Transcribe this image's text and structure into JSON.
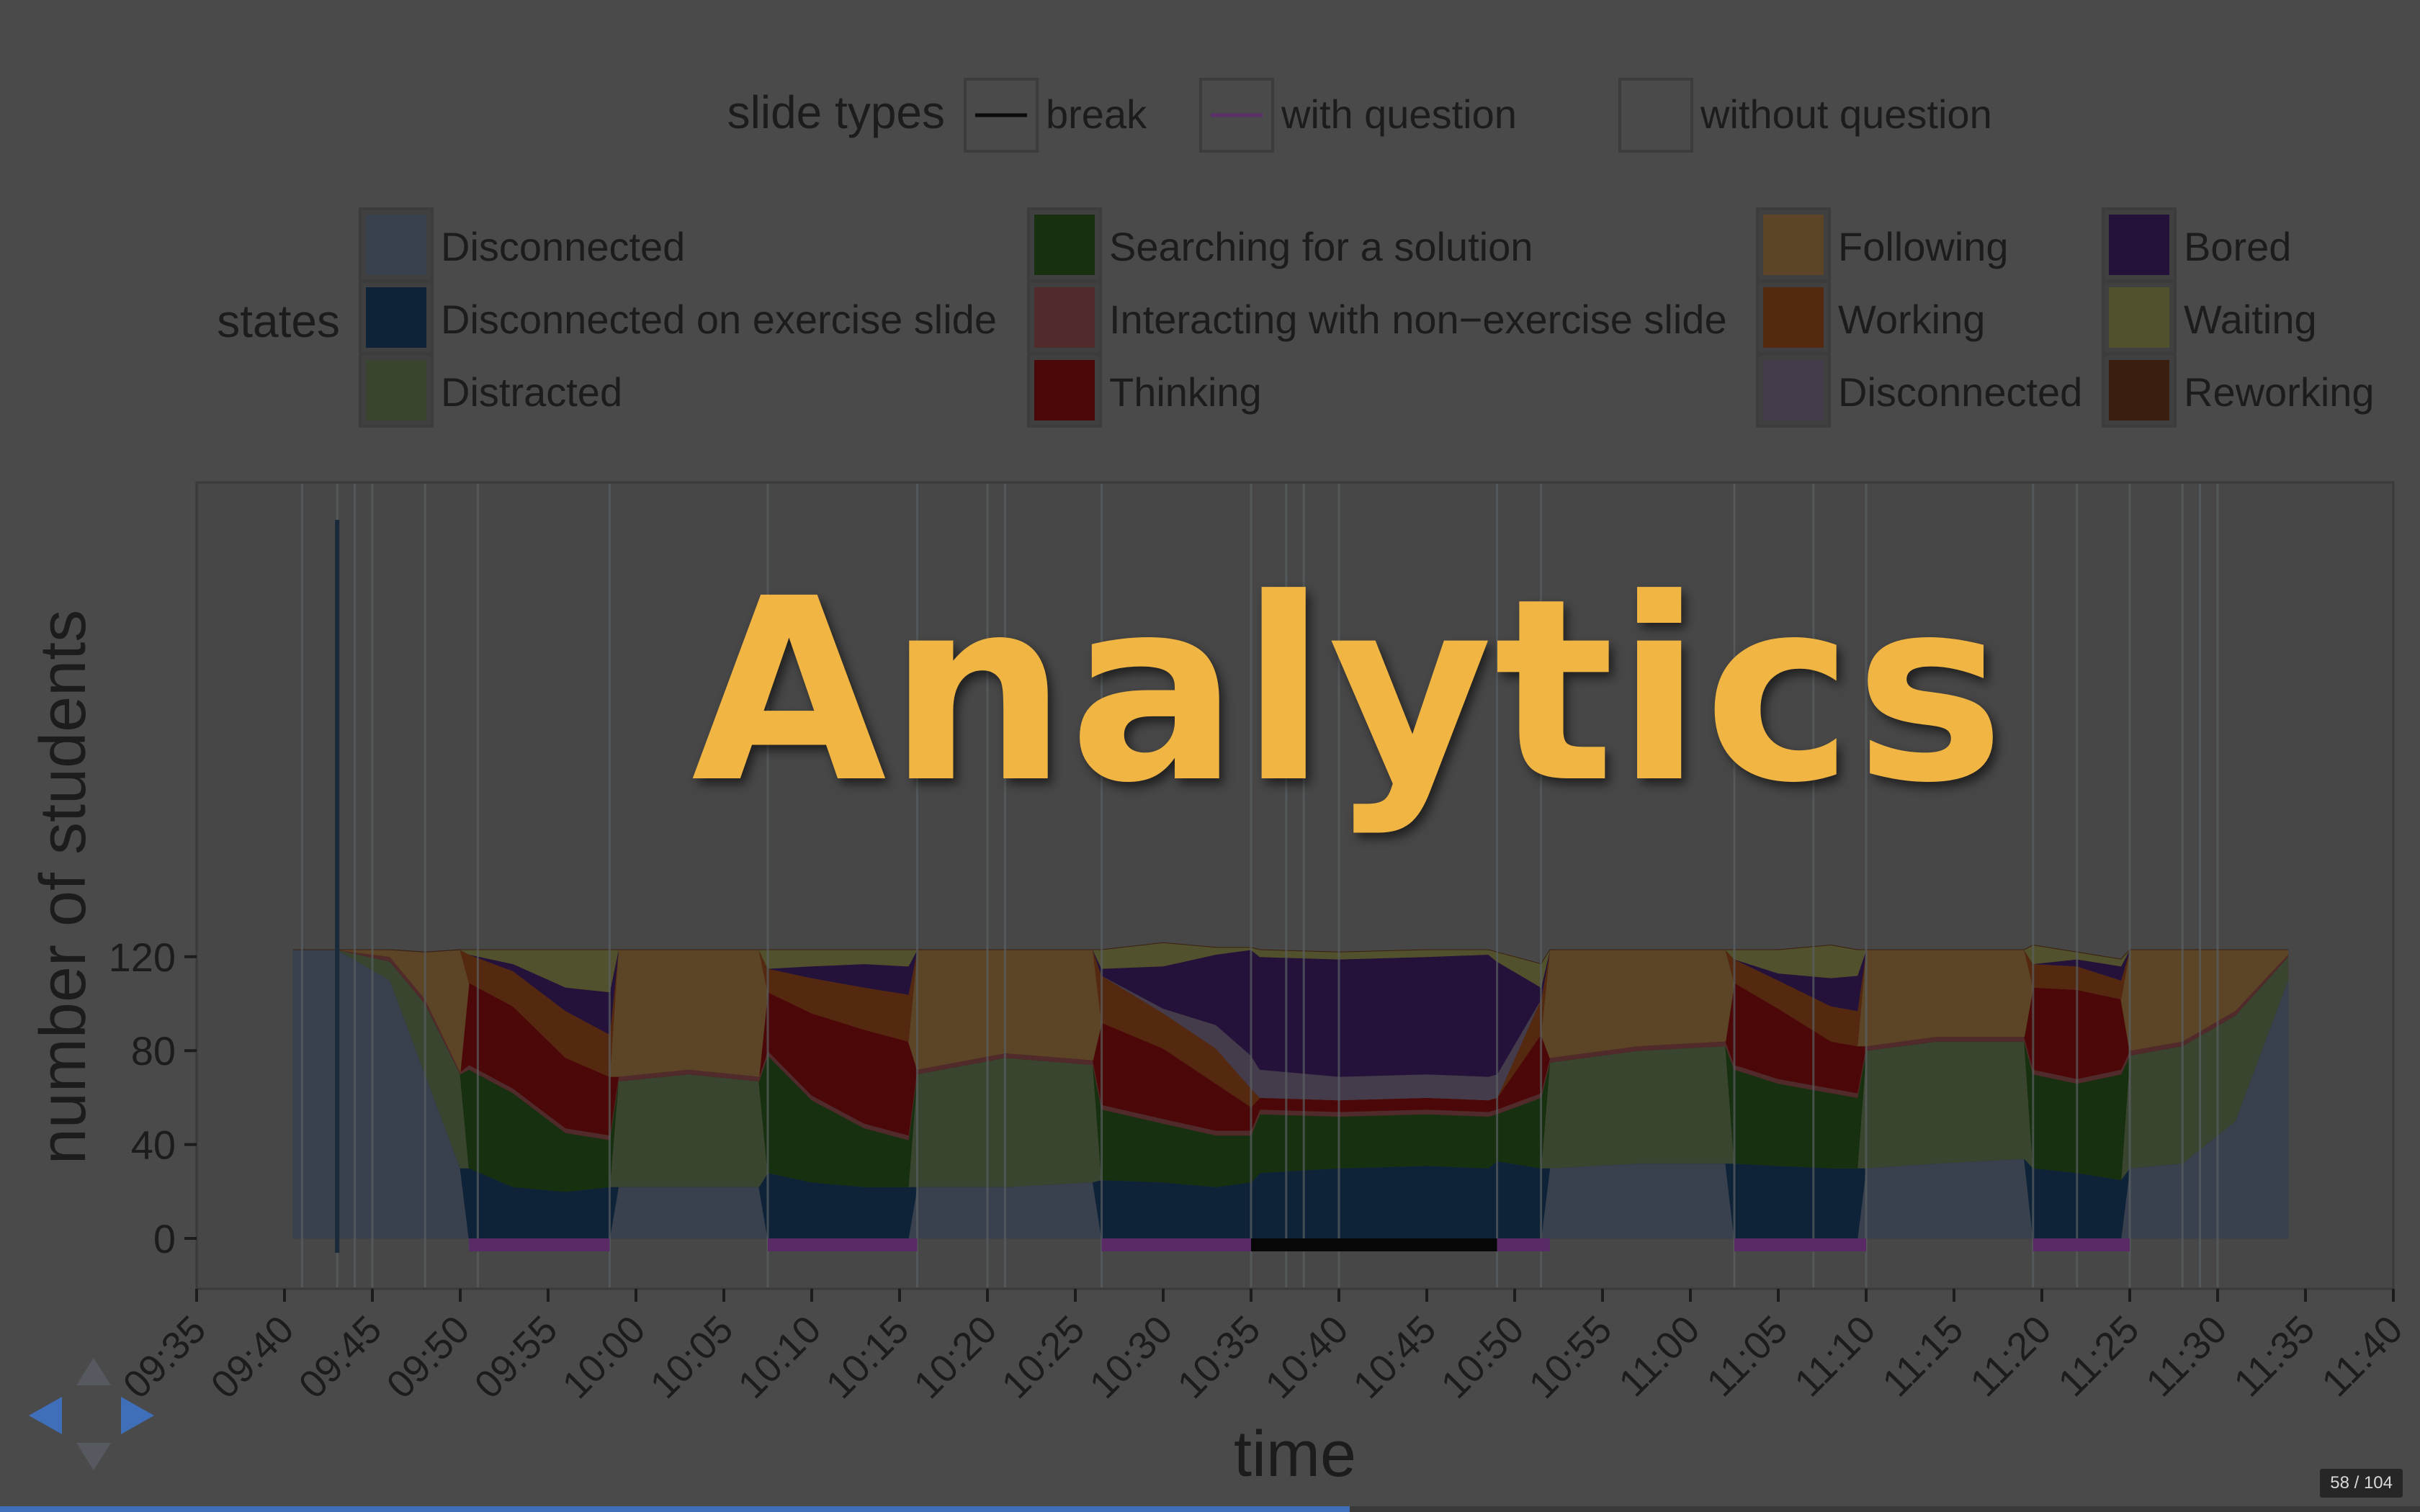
{
  "slide": {
    "title": "Analytics",
    "counter": "58 / 104",
    "progress": 0.5577
  },
  "legend_slide_types": {
    "title": "slide types",
    "entries": [
      {
        "label": "break",
        "swatch": "line",
        "color": "#0a0a0a"
      },
      {
        "label": "with question",
        "swatch": "line",
        "color": "#5a2f6a"
      },
      {
        "label": "without question",
        "swatch": "empty",
        "color": ""
      }
    ]
  },
  "legend_states": {
    "title": "states",
    "entries": [
      {
        "label": "Disconnected",
        "color": "#38414d"
      },
      {
        "label": "Disconnected on exercise slide",
        "color": "#0e2238"
      },
      {
        "label": "Distracted",
        "color": "#3a4530"
      },
      {
        "label": "Searching for a solution",
        "color": "#17300f"
      },
      {
        "label": "Interacting with non−exercise slide",
        "color": "#512b2b"
      },
      {
        "label": "Thinking",
        "color": "#4c0808"
      },
      {
        "label": "Following",
        "color": "#5c4426"
      },
      {
        "label": "Working",
        "color": "#552810"
      },
      {
        "label": "Disconnected",
        "color": "#443c4b"
      },
      {
        "label": "Bored",
        "color": "#24123a"
      },
      {
        "label": "Waiting",
        "color": "#52512d"
      },
      {
        "label": "Reworking",
        "color": "#3a1e10"
      }
    ]
  },
  "chart_data": {
    "type": "area",
    "xlabel": "time",
    "ylabel": "number of students",
    "ylim": [
      0,
      130
    ],
    "xlim": [
      "09:35",
      "11:40"
    ],
    "x_ticks": [
      "09:35",
      "09:40",
      "09:45",
      "09:50",
      "09:55",
      "10:00",
      "10:05",
      "10:10",
      "10:15",
      "10:20",
      "10:25",
      "10:30",
      "10:35",
      "10:40",
      "10:45",
      "10:50",
      "10:55",
      "11:00",
      "11:05",
      "11:10",
      "11:15",
      "11:20",
      "11:25",
      "11:30",
      "11:35",
      "11:40"
    ],
    "y_ticks": [
      0,
      40,
      80,
      120
    ],
    "x": [
      "09:40:30",
      "09:43",
      "09:46",
      "09:48",
      "09:50",
      "09:50:30",
      "09:53",
      "09:56",
      "09:58:30",
      "09:59",
      "10:03",
      "10:07",
      "10:07:30",
      "10:10",
      "10:13",
      "10:15:30",
      "10:16",
      "10:21",
      "10:26",
      "10:26:30",
      "10:30",
      "10:33",
      "10:35",
      "10:35:30",
      "10:40",
      "10:45",
      "10:48:30",
      "10:49",
      "10:51:30",
      "10:52",
      "10:57",
      "11:02",
      "11:02:30",
      "11:05",
      "11:08",
      "11:09:30",
      "11:10",
      "11:14",
      "11:19",
      "11:19:30",
      "11:22",
      "11:24:30",
      "11:25",
      "11:28",
      "11:31",
      "11:34"
    ],
    "series": [
      {
        "name": "Disconnected",
        "color": "#38414d",
        "values": [
          123,
          123,
          110,
          70,
          30,
          0,
          0,
          0,
          0,
          22,
          22,
          22,
          0,
          0,
          0,
          0,
          22,
          22,
          24,
          0,
          0,
          0,
          0,
          0,
          0,
          0,
          0,
          0,
          0,
          30,
          32,
          32,
          0,
          0,
          0,
          0,
          30,
          32,
          34,
          0,
          0,
          0,
          30,
          32,
          50,
          110
        ]
      },
      {
        "name": "Disconnected on exercise slide",
        "color": "#0e2238",
        "values": [
          0,
          0,
          0,
          0,
          0,
          30,
          22,
          20,
          22,
          0,
          0,
          0,
          28,
          24,
          22,
          22,
          0,
          0,
          0,
          25,
          24,
          22,
          24,
          28,
          30,
          31,
          30,
          33,
          30,
          0,
          0,
          0,
          32,
          31,
          30,
          30,
          0,
          0,
          0,
          30,
          28,
          25,
          0,
          0,
          0,
          0
        ]
      },
      {
        "name": "Distracted",
        "color": "#3a4530",
        "values": [
          0,
          0,
          8,
          30,
          40,
          0,
          0,
          0,
          0,
          45,
          48,
          45,
          0,
          0,
          0,
          0,
          48,
          55,
          50,
          0,
          0,
          0,
          0,
          0,
          0,
          0,
          0,
          0,
          0,
          45,
          48,
          50,
          0,
          0,
          0,
          0,
          50,
          52,
          50,
          0,
          0,
          0,
          48,
          50,
          45,
          10
        ]
      },
      {
        "name": "Searching for a solution",
        "color": "#17300f",
        "values": [
          0,
          0,
          0,
          0,
          0,
          42,
          40,
          25,
          20,
          0,
          0,
          0,
          50,
          35,
          25,
          20,
          0,
          0,
          0,
          30,
          25,
          22,
          20,
          25,
          22,
          22,
          22,
          20,
          30,
          0,
          0,
          0,
          40,
          35,
          32,
          30,
          0,
          0,
          0,
          40,
          38,
          45,
          0,
          0,
          0,
          0
        ]
      },
      {
        "name": "Interacting with non−exercise slide",
        "color": "#512b2b",
        "values": [
          0,
          0,
          2,
          2,
          1,
          2,
          2,
          2,
          2,
          2,
          2,
          2,
          2,
          2,
          2,
          2,
          2,
          2,
          2,
          2,
          2,
          2,
          2,
          2,
          2,
          2,
          2,
          2,
          2,
          2,
          2,
          2,
          2,
          2,
          2,
          2,
          2,
          2,
          2,
          2,
          2,
          2,
          2,
          2,
          2,
          1
        ]
      },
      {
        "name": "Thinking",
        "color": "#4c0808",
        "values": [
          0,
          0,
          0,
          0,
          0,
          35,
          35,
          30,
          25,
          0,
          0,
          0,
          25,
          35,
          40,
          40,
          0,
          0,
          0,
          35,
          30,
          20,
          10,
          5,
          5,
          5,
          5,
          5,
          25,
          0,
          0,
          0,
          35,
          30,
          20,
          20,
          0,
          0,
          0,
          35,
          38,
          30,
          0,
          0,
          0,
          0
        ]
      },
      {
        "name": "Following",
        "color": "#5c4426",
        "values": [
          0,
          0,
          3,
          20,
          52,
          0,
          0,
          0,
          0,
          54,
          51,
          54,
          0,
          0,
          0,
          0,
          51,
          44,
          47,
          0,
          0,
          0,
          0,
          0,
          0,
          0,
          0,
          0,
          0,
          46,
          41,
          39,
          0,
          0,
          0,
          0,
          41,
          37,
          37,
          0,
          0,
          0,
          43,
          39,
          26,
          2
        ]
      },
      {
        "name": "Working",
        "color": "#552810",
        "values": [
          0,
          0,
          0,
          0,
          0,
          12,
          15,
          20,
          18,
          0,
          0,
          0,
          10,
          15,
          18,
          20,
          0,
          0,
          0,
          20,
          15,
          15,
          8,
          0,
          0,
          0,
          0,
          0,
          15,
          0,
          0,
          0,
          10,
          12,
          15,
          15,
          0,
          0,
          0,
          10,
          10,
          8,
          0,
          0,
          0,
          0
        ]
      },
      {
        "name": "Disconnected",
        "color": "#443c4b",
        "values": [
          0,
          0,
          0,
          0,
          0,
          0,
          0,
          0,
          0,
          0,
          0,
          0,
          0,
          0,
          0,
          0,
          0,
          0,
          0,
          0,
          2,
          10,
          14,
          12,
          10,
          10,
          10,
          10,
          0,
          0,
          0,
          0,
          0,
          0,
          0,
          0,
          0,
          0,
          0,
          0,
          0,
          0,
          0,
          0,
          0,
          0
        ]
      },
      {
        "name": "Bored",
        "color": "#24123a",
        "values": [
          0,
          0,
          0,
          0,
          0,
          0,
          3,
          10,
          18,
          0,
          0,
          0,
          0,
          5,
          10,
          12,
          0,
          0,
          0,
          3,
          18,
          30,
          45,
          48,
          50,
          50,
          52,
          48,
          5,
          0,
          0,
          0,
          0,
          3,
          12,
          15,
          0,
          0,
          0,
          0,
          3,
          6,
          0,
          0,
          0,
          0
        ]
      },
      {
        "name": "Waiting",
        "color": "#52512d",
        "values": [
          0,
          0,
          0,
          0,
          0,
          2,
          6,
          16,
          18,
          0,
          0,
          0,
          8,
          7,
          6,
          7,
          0,
          0,
          0,
          8,
          10,
          3,
          1,
          3,
          3,
          3,
          2,
          4,
          10,
          0,
          0,
          0,
          4,
          10,
          14,
          11,
          0,
          0,
          0,
          8,
          3,
          3,
          0,
          0,
          0,
          0
        ]
      },
      {
        "name": "Reworking",
        "color": "#3a1e10",
        "values": [
          0,
          0,
          0,
          0,
          0,
          0,
          0,
          0,
          0,
          0,
          0,
          0,
          0,
          0,
          0,
          0,
          0,
          0,
          0,
          0,
          0,
          0,
          0,
          0,
          0,
          0,
          0,
          0,
          0,
          0,
          0,
          0,
          0,
          0,
          0,
          0,
          0,
          0,
          0,
          0,
          0,
          0,
          0,
          0,
          0,
          0
        ]
      }
    ],
    "slide_segments": [
      {
        "type": "without question",
        "start": "09:40:30",
        "end": "09:50:30"
      },
      {
        "type": "with question",
        "start": "09:50:30",
        "end": "09:58:30"
      },
      {
        "type": "without question",
        "start": "09:58:30",
        "end": "10:07:30"
      },
      {
        "type": "with question",
        "start": "10:07:30",
        "end": "10:16"
      },
      {
        "type": "without question",
        "start": "10:16",
        "end": "10:26:30"
      },
      {
        "type": "with question",
        "start": "10:26:30",
        "end": "10:35"
      },
      {
        "type": "break",
        "start": "10:35",
        "end": "10:49"
      },
      {
        "type": "with question",
        "start": "10:49",
        "end": "10:52"
      },
      {
        "type": "without question",
        "start": "10:52",
        "end": "11:02:30"
      },
      {
        "type": "with question",
        "start": "11:02:30",
        "end": "11:10"
      },
      {
        "type": "without question",
        "start": "11:10",
        "end": "11:19:30"
      },
      {
        "type": "with question",
        "start": "11:19:30",
        "end": "11:25"
      },
      {
        "type": "without question",
        "start": "11:25",
        "end": "11:34"
      }
    ],
    "slide_boundaries": [
      "09:41",
      "09:43",
      "09:44",
      "09:45",
      "09:48",
      "09:51",
      "09:58:30",
      "10:07:30",
      "10:16",
      "10:20",
      "10:21",
      "10:26:30",
      "10:35",
      "10:37",
      "10:38",
      "10:40",
      "10:49",
      "10:51:30",
      "11:02:30",
      "11:07",
      "11:10",
      "11:19:30",
      "11:22",
      "11:25",
      "11:28",
      "11:29",
      "11:30"
    ],
    "grid": false,
    "legend": "top"
  }
}
